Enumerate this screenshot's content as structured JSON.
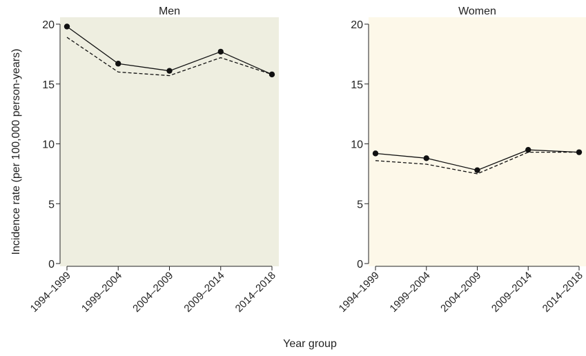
{
  "ylabel": "Incidence rate (per 100,000 person-years)",
  "xlabel": "Year group",
  "chart_data": [
    {
      "type": "line",
      "title": "Men",
      "panel_color": "#eeeee0",
      "categories": [
        "1994–1999",
        "1999–2004",
        "2004–2009",
        "2009–2014",
        "2014–2018"
      ],
      "ylim": [
        0,
        20
      ],
      "yticks": [
        0,
        5,
        10,
        15,
        20
      ],
      "ytick_labels": [
        "0",
        "5",
        "10",
        "15",
        "20"
      ],
      "grid": false,
      "series": [
        {
          "style": "solid",
          "markers": true,
          "values": [
            19.8,
            16.7,
            16.1,
            17.7,
            15.8
          ]
        },
        {
          "style": "dashed",
          "markers": false,
          "values": [
            18.9,
            16.0,
            15.7,
            17.2,
            15.8
          ]
        }
      ]
    },
    {
      "type": "line",
      "title": "Women",
      "panel_color": "#fdf8e9",
      "categories": [
        "1994–1999",
        "1999–2004",
        "2004–2009",
        "2009–2014",
        "2014–2018"
      ],
      "ylim": [
        0,
        20
      ],
      "yticks": [
        0,
        5,
        10,
        15,
        20
      ],
      "ytick_labels": [
        "0",
        "5",
        "10",
        "15",
        "20"
      ],
      "grid": false,
      "series": [
        {
          "style": "solid",
          "markers": true,
          "values": [
            9.2,
            8.8,
            7.8,
            9.5,
            9.3
          ]
        },
        {
          "style": "dashed",
          "markers": false,
          "values": [
            8.6,
            8.3,
            7.5,
            9.3,
            9.3
          ]
        }
      ]
    }
  ]
}
